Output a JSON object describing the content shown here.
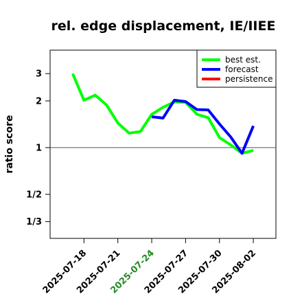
{
  "chart_data": {
    "type": "line",
    "title": "rel. edge displacement, IE/IIEE",
    "xlabel": "",
    "ylabel": "ratio score",
    "y_scale": "log",
    "ylim": [
      0.26,
      4.25
    ],
    "x_range": [
      "2025-07-15",
      "2025-08-04"
    ],
    "y_ticks": [
      {
        "value": 3,
        "label": "3"
      },
      {
        "value": 2,
        "label": "2"
      },
      {
        "value": 1,
        "label": "1"
      },
      {
        "value": 0.5,
        "label": "1/2"
      },
      {
        "value": 0.3333,
        "label": "1/3"
      }
    ],
    "x_ticks": [
      {
        "date": "2025-07-18",
        "label": "2025-07-18",
        "color": "#000000"
      },
      {
        "date": "2025-07-21",
        "label": "2025-07-21",
        "color": "#000000"
      },
      {
        "date": "2025-07-24",
        "label": "2025-07-24",
        "color": "#228B22"
      },
      {
        "date": "2025-07-27",
        "label": "2025-07-27",
        "color": "#000000"
      },
      {
        "date": "2025-07-30",
        "label": "2025-07-30",
        "color": "#000000"
      },
      {
        "date": "2025-08-02",
        "label": "2025-08-02",
        "color": "#000000"
      }
    ],
    "reference_line": 1,
    "legend_position": "top-right",
    "series": [
      {
        "name": "best est.",
        "color": "#00ff00",
        "points": [
          {
            "x": "2025-07-17",
            "y": 3.0
          },
          {
            "x": "2025-07-18",
            "y": 2.02
          },
          {
            "x": "2025-07-19",
            "y": 2.18
          },
          {
            "x": "2025-07-20",
            "y": 1.88
          },
          {
            "x": "2025-07-21",
            "y": 1.44
          },
          {
            "x": "2025-07-22",
            "y": 1.24
          },
          {
            "x": "2025-07-23",
            "y": 1.27
          },
          {
            "x": "2025-07-24",
            "y": 1.64
          },
          {
            "x": "2025-07-25",
            "y": 1.82
          },
          {
            "x": "2025-07-26",
            "y": 1.97
          },
          {
            "x": "2025-07-27",
            "y": 1.96
          },
          {
            "x": "2025-07-28",
            "y": 1.64
          },
          {
            "x": "2025-07-29",
            "y": 1.56
          },
          {
            "x": "2025-07-30",
            "y": 1.16
          },
          {
            "x": "2025-07-31",
            "y": 1.04
          },
          {
            "x": "2025-08-01",
            "y": 0.92
          },
          {
            "x": "2025-08-02",
            "y": 0.96
          }
        ]
      },
      {
        "name": "forecast",
        "color": "#0000ff",
        "points": [
          {
            "x": "2025-07-24",
            "y": 1.58
          },
          {
            "x": "2025-07-25",
            "y": 1.55
          },
          {
            "x": "2025-07-26",
            "y": 2.02
          },
          {
            "x": "2025-07-27",
            "y": 1.98
          },
          {
            "x": "2025-07-28",
            "y": 1.76
          },
          {
            "x": "2025-07-29",
            "y": 1.75
          },
          {
            "x": "2025-07-30",
            "y": 1.42
          },
          {
            "x": "2025-07-31",
            "y": 1.17
          },
          {
            "x": "2025-08-01",
            "y": 0.92
          },
          {
            "x": "2025-08-02",
            "y": 1.38
          }
        ]
      },
      {
        "name": "persistence",
        "color": "#ff0000",
        "points": []
      }
    ]
  }
}
